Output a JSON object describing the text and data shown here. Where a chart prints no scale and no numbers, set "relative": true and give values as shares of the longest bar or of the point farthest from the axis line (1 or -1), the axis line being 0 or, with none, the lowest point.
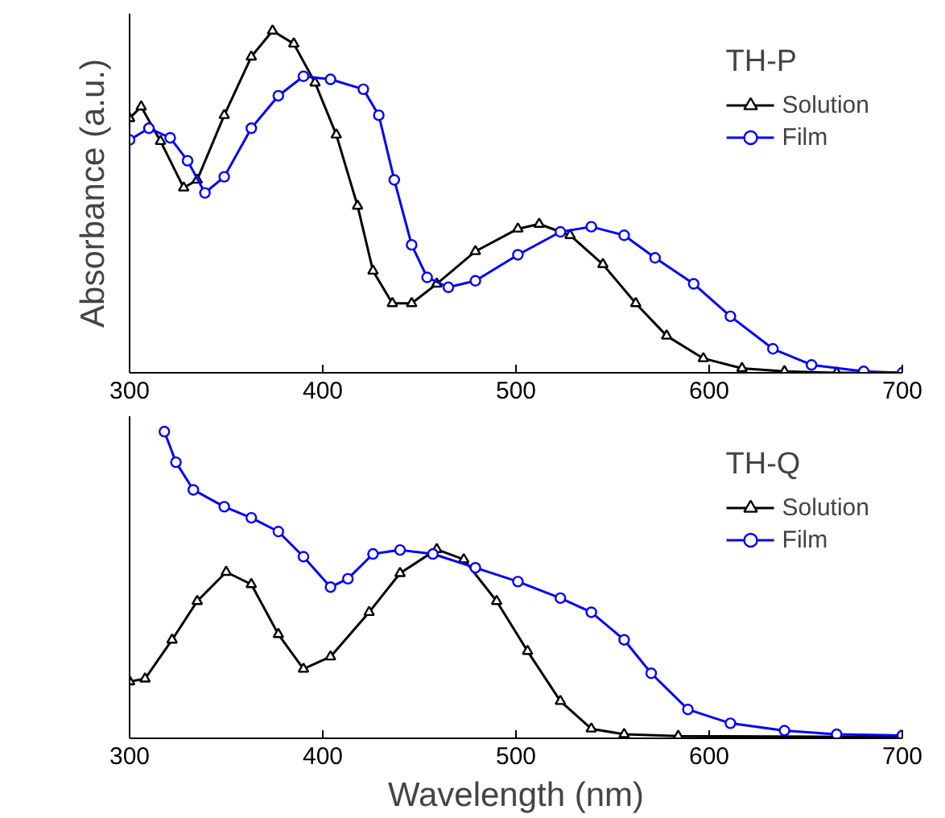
{
  "chart_data": [
    {
      "type": "line",
      "relative": true,
      "ylabel": "Absorbance (a.u.)",
      "legend_title": "TH-P",
      "legend": "top right",
      "tick_labels": "x",
      "line_style": "solid",
      "xlim": [
        300,
        700
      ],
      "xticks": [
        300,
        400,
        500,
        600,
        700
      ],
      "series": [
        {
          "name": "Solution",
          "color": "#000000",
          "marker": "triangle",
          "x": [
            300,
            306,
            316,
            328,
            335,
            349,
            363,
            374,
            385,
            396,
            407,
            418,
            426,
            436,
            446,
            459,
            479,
            501,
            512,
            528,
            545,
            562,
            578,
            597,
            617,
            639,
            666,
            700
          ],
          "values": [
            0.744,
            0.778,
            0.677,
            0.541,
            0.564,
            0.753,
            0.924,
            1.0,
            0.962,
            0.848,
            0.696,
            0.488,
            0.298,
            0.203,
            0.203,
            0.26,
            0.355,
            0.421,
            0.435,
            0.402,
            0.317,
            0.203,
            0.108,
            0.042,
            0.013,
            0.004,
            0,
            0
          ]
        },
        {
          "name": "Film",
          "color": "#0000ff",
          "marker": "circle",
          "x": [
            300,
            310,
            321,
            330,
            339,
            349,
            363,
            377,
            390,
            404,
            421,
            429,
            437,
            446,
            454,
            465,
            479,
            501,
            523,
            539,
            556,
            572,
            592,
            611,
            633,
            653,
            680,
            700
          ],
          "values": [
            0.681,
            0.715,
            0.687,
            0.62,
            0.526,
            0.573,
            0.715,
            0.81,
            0.867,
            0.858,
            0.829,
            0.753,
            0.564,
            0.374,
            0.279,
            0.25,
            0.269,
            0.345,
            0.412,
            0.427,
            0.402,
            0.336,
            0.26,
            0.165,
            0.07,
            0.023,
            0.004,
            0
          ]
        }
      ]
    },
    {
      "type": "line",
      "relative": true,
      "xlabel": "Wavelength (nm)",
      "legend_title": "TH-Q",
      "legend": "top right",
      "tick_labels": "x",
      "line_style": "solid",
      "xlim": [
        300,
        700
      ],
      "xticks": [
        300,
        400,
        500,
        600,
        700
      ],
      "series": [
        {
          "name": "Solution",
          "color": "#000000",
          "marker": "triangle",
          "x": [
            300,
            308,
            322,
            335,
            350,
            363,
            377,
            390,
            404,
            424,
            440,
            459,
            473,
            490,
            506,
            523,
            539,
            556,
            584,
            700
          ],
          "values": [
            0.185,
            0.194,
            0.321,
            0.447,
            0.542,
            0.502,
            0.339,
            0.226,
            0.266,
            0.411,
            0.538,
            0.616,
            0.583,
            0.447,
            0.284,
            0.121,
            0.031,
            0.013,
            0.007,
            0.004
          ]
        },
        {
          "name": "Film",
          "color": "#0000ff",
          "marker": "circle",
          "x": [
            318,
            324,
            333,
            349,
            363,
            377,
            390,
            404,
            413,
            426,
            440,
            457,
            479,
            501,
            523,
            539,
            556,
            570,
            589,
            611,
            639,
            666,
            700
          ],
          "values": [
            1.0,
            0.9,
            0.81,
            0.755,
            0.719,
            0.674,
            0.592,
            0.493,
            0.52,
            0.601,
            0.614,
            0.601,
            0.556,
            0.511,
            0.457,
            0.411,
            0.321,
            0.212,
            0.094,
            0.049,
            0.025,
            0.013,
            0.009
          ]
        }
      ]
    }
  ]
}
